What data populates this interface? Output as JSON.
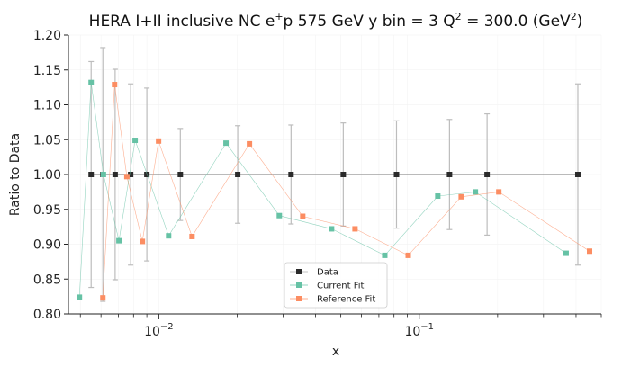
{
  "chart_data": {
    "type": "line",
    "title_main": "HERA I+II inclusive NC e",
    "title_sup1": "+",
    "title_mid": "p 575 GeV y bin = 3 Q",
    "title_sup2": "2",
    "title_end": " = 300.0 (GeV",
    "title_sup3": "2",
    "title_close": ")",
    "xlabel": "x",
    "ylabel": "Ratio to Data",
    "xscale": "log",
    "xlim": [
      0.0045,
      0.5
    ],
    "ylim": [
      0.8,
      1.2
    ],
    "yticks": [
      "0.80",
      "0.85",
      "0.90",
      "0.95",
      "1.00",
      "1.05",
      "1.10",
      "1.15",
      "1.20"
    ],
    "xticks": [
      {
        "value": 0.01,
        "base": "10",
        "exp": "−2"
      },
      {
        "value": 0.1,
        "base": "10",
        "exp": "−1"
      }
    ],
    "grid": true,
    "legend_position": "bottom-center",
    "series": [
      {
        "name": "Data",
        "color": "#2b2b2b",
        "x": [
          0.0055,
          0.0061,
          0.0068,
          0.0078,
          0.009,
          0.0121,
          0.0201,
          0.0322,
          0.0511,
          0.0818,
          0.1307,
          0.1822,
          0.4065
        ],
        "y": [
          1.0,
          1.0,
          1.0,
          1.0,
          1.0,
          1.0,
          1.0,
          1.0,
          1.0,
          1.0,
          1.0,
          1.0,
          1.0
        ],
        "err_lo": [
          0.162,
          0.182,
          0.151,
          0.13,
          0.124,
          0.066,
          0.07,
          0.071,
          0.074,
          0.077,
          0.079,
          0.087,
          0.13
        ],
        "err_hi": [
          0.162,
          0.182,
          0.151,
          0.13,
          0.124,
          0.066,
          0.07,
          0.071,
          0.074,
          0.077,
          0.079,
          0.087,
          0.13
        ]
      },
      {
        "name": "Current Fit",
        "color": "#66c2a5",
        "x": [
          0.0055,
          0.0061,
          0.0068,
          0.0078,
          0.009,
          0.0121,
          0.0201,
          0.0322,
          0.0511,
          0.0818,
          0.1307,
          0.1822,
          0.4065
        ],
        "y": [
          0.824,
          1.132,
          1.0,
          0.905,
          1.049,
          0.912,
          1.045,
          0.941,
          0.922,
          0.884,
          0.969,
          0.975,
          0.887
        ]
      },
      {
        "name": "Reference Fit",
        "color": "#fc8d62",
        "x": [
          0.0055,
          0.0061,
          0.0068,
          0.0078,
          0.009,
          0.0121,
          0.0201,
          0.0322,
          0.0511,
          0.0818,
          0.1307,
          0.1822,
          0.4065
        ],
        "y": [
          0.823,
          1.129,
          0.997,
          0.904,
          1.048,
          0.911,
          1.044,
          0.94,
          0.922,
          0.884,
          0.968,
          0.975,
          0.89
        ]
      }
    ]
  }
}
